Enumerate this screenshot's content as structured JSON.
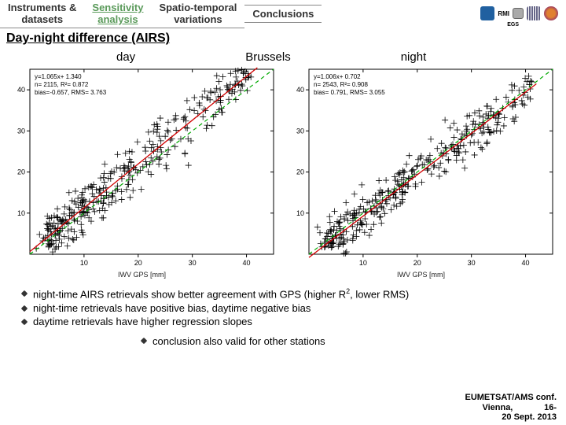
{
  "nav": {
    "tab1_l1": "Instruments &",
    "tab1_l2": "datasets",
    "tab2_l1": "Sensitivity",
    "tab2_l2": "analysis",
    "tab3_l1": "Spatio-temporal",
    "tab3_l2": "variations",
    "tab4_l1": "Conclusions",
    "tab4_l2": ""
  },
  "header": "Day-night difference (AIRS)",
  "labels": {
    "day": "day",
    "city": "Brussels",
    "night": "night"
  },
  "xaxis_label": "IWV GPS [mm]",
  "day_chart": {
    "stats": [
      "y=1.065x+ 1.340",
      "n= 2115, R²= 0.872",
      "bias=-0.657, RMS= 3.763"
    ],
    "xlim": [
      0,
      45
    ],
    "ylim": [
      0,
      45
    ],
    "xticks": [
      10,
      20,
      30,
      40
    ],
    "yticks": [
      10,
      20,
      30,
      40
    ],
    "fit_line": {
      "slope": 1.065,
      "intercept": 1.34,
      "color": "#d00000"
    },
    "ref_line": {
      "slope": 1.0,
      "intercept": 0,
      "color": "#00aa00",
      "dash": "5,4"
    },
    "scatter_color": "#000000",
    "marker": "+",
    "marker_size": 4,
    "n_points": 2115,
    "bias": -0.657,
    "rms": 3.763,
    "background": "#ffffff",
    "axis_color": "#000000",
    "font_size_stats": 8
  },
  "night_chart": {
    "stats": [
      "y=1.006x+ 0.702",
      "n= 2543, R²= 0.908",
      "bias= 0.791, RMS= 3.055"
    ],
    "xlim": [
      0,
      45
    ],
    "ylim": [
      0,
      45
    ],
    "xticks": [
      10,
      20,
      30,
      40
    ],
    "yticks": [
      10,
      20,
      30,
      40
    ],
    "fit_line": {
      "slope": 1.006,
      "intercept": 0.702,
      "color": "#d00000"
    },
    "ref_line": {
      "slope": 1.0,
      "intercept": 0,
      "color": "#00aa00",
      "dash": "5,4"
    },
    "scatter_color": "#000000",
    "marker": "+",
    "marker_size": 4,
    "n_points": 2543,
    "bias": 0.791,
    "rms": 3.055,
    "background": "#ffffff",
    "axis_color": "#000000",
    "font_size_stats": 8
  },
  "bullets": {
    "b1a": "night-time AIRS retrievals show better agreement with GPS (higher R",
    "b1b": ", lower RMS)",
    "b2": "night-time retrievals have positive bias, daytime negative bias",
    "b3": "daytime retrievals have higher regression slopes"
  },
  "conclusion": "conclusion also valid for other stations",
  "footer": {
    "l1": "EUMETSAT/AMS conf.",
    "l2": "Vienna,             16-",
    "l3": "20 Sept. 2013"
  },
  "logo_colors": [
    "#2060a0",
    "#888888",
    "#446688",
    "#e08030"
  ],
  "egs_label": "EGS"
}
